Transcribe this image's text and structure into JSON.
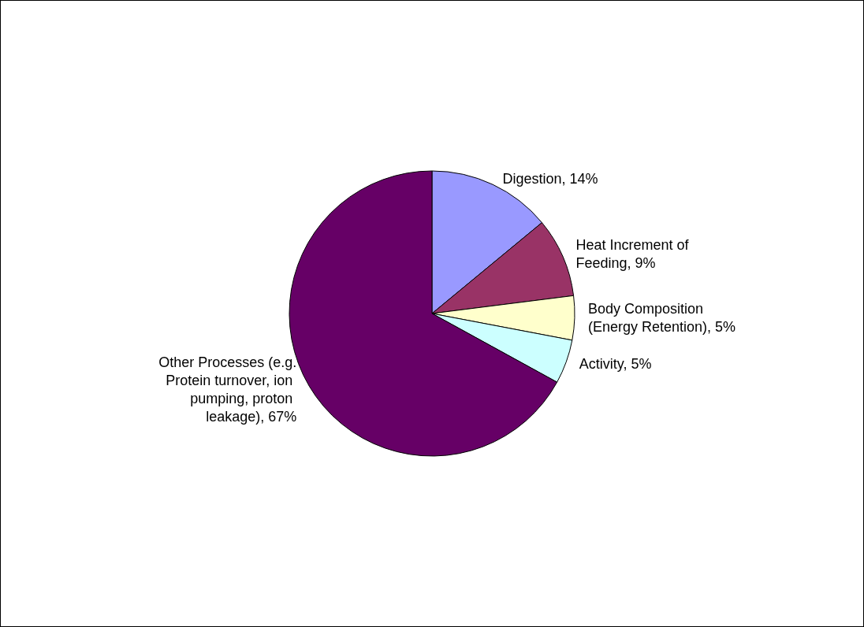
{
  "chart_data": {
    "type": "pie",
    "categories": [
      "Digestion",
      "Heat Increment of Feeding",
      "Body Composition (Energy Retention)",
      "Activity",
      "Other Processes (e.g. Protein turnover, ion pumping, proton leakage)"
    ],
    "values": [
      14,
      9,
      5,
      5,
      67
    ],
    "value_labels": [
      "14%",
      "9%",
      "5%",
      "5%",
      "67%"
    ],
    "colors": [
      "#9999ff",
      "#993366",
      "#ffffcc",
      "#ccffff",
      "#660066"
    ],
    "legend": false
  }
}
